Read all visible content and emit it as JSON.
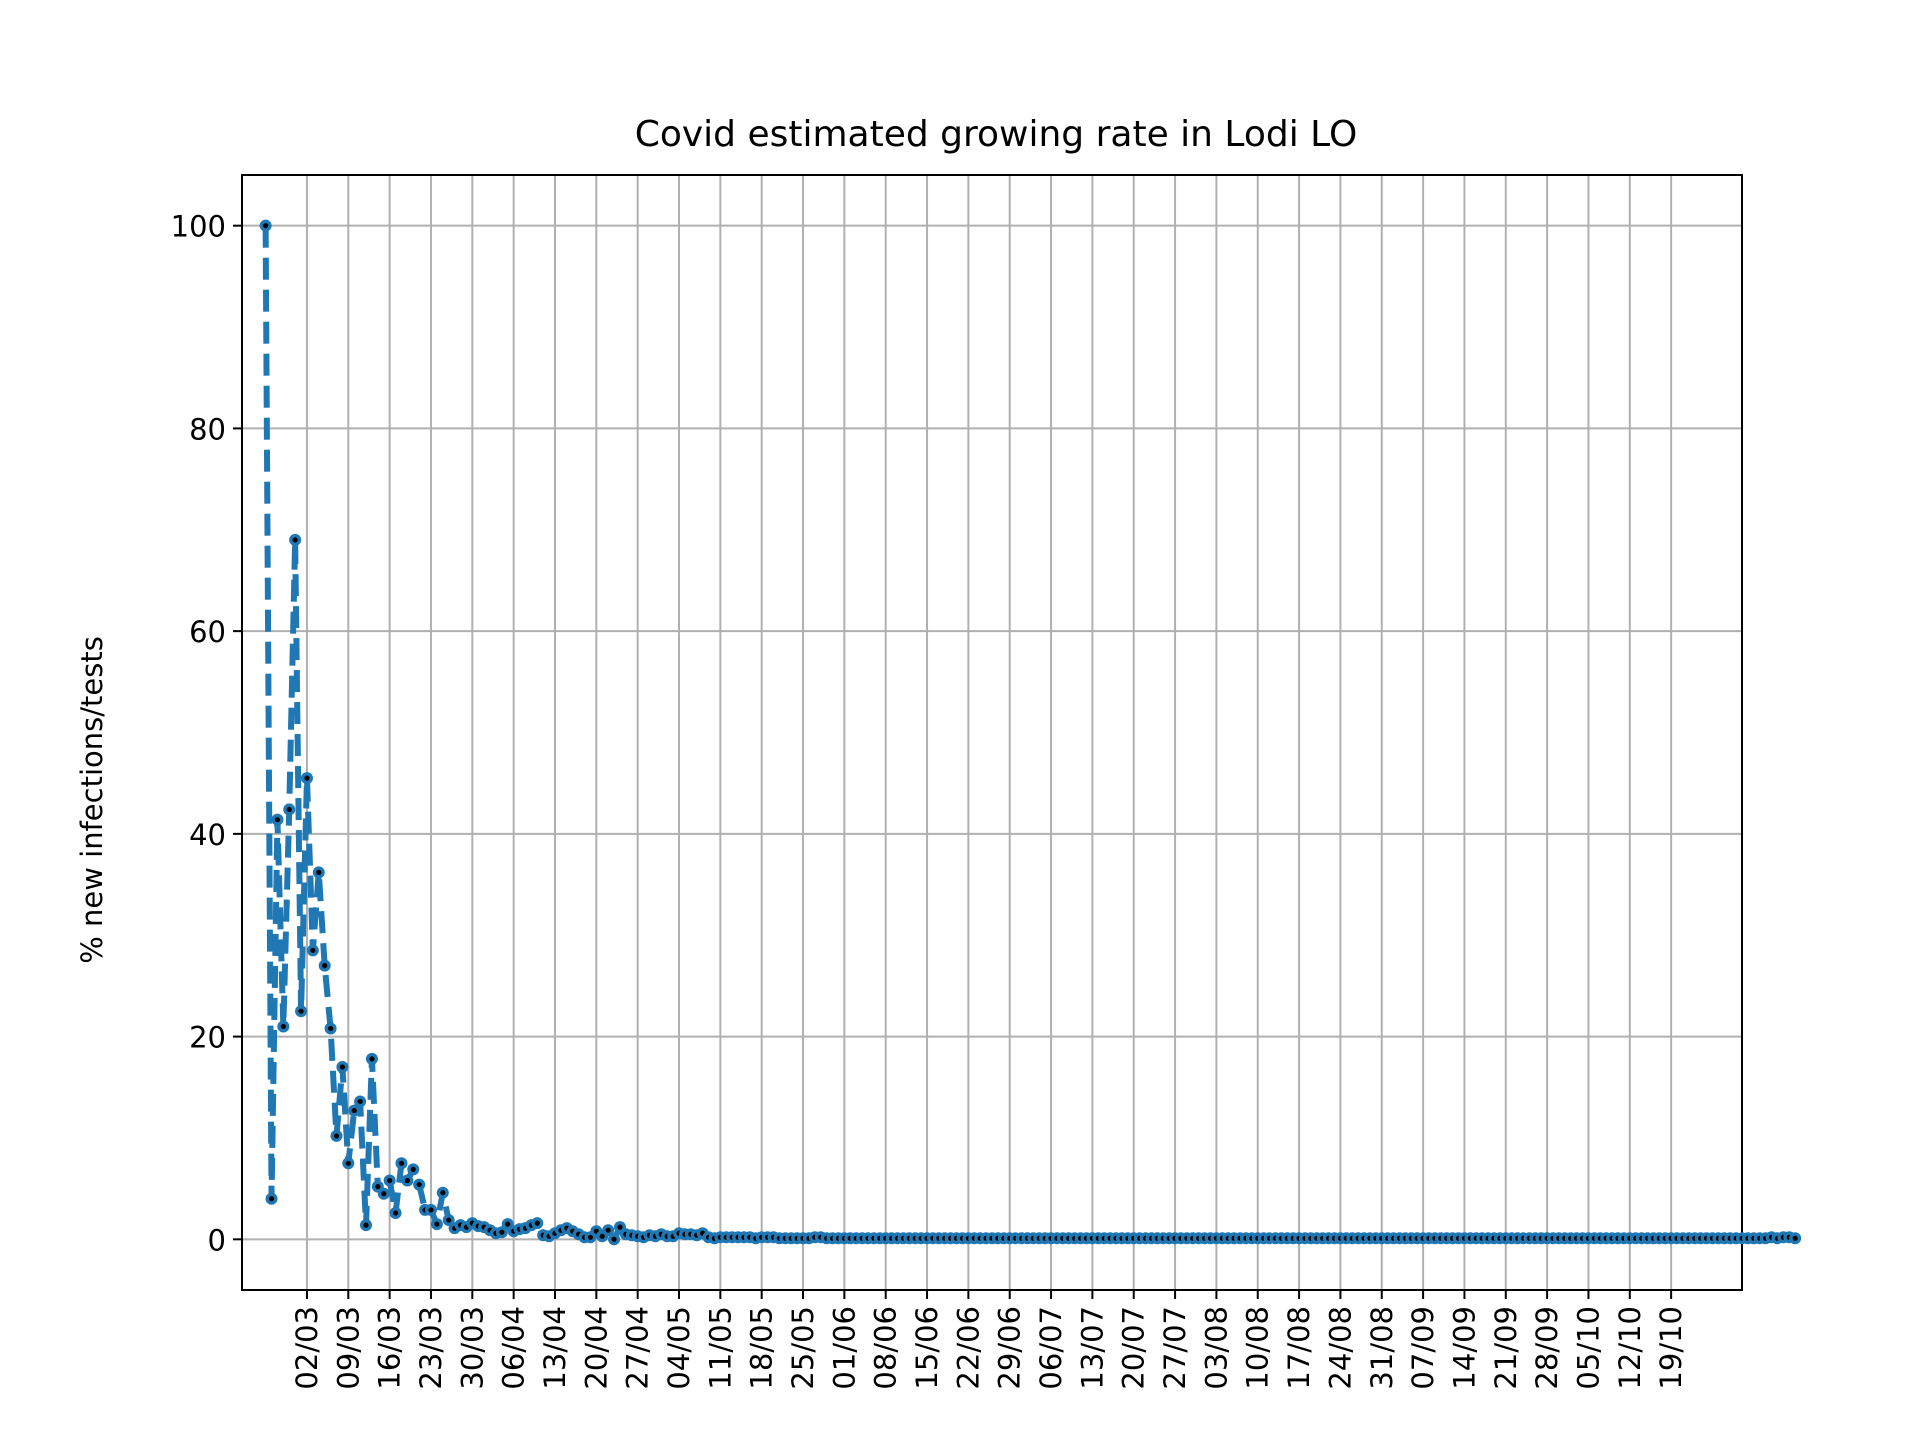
{
  "chart_data": {
    "type": "line",
    "title": "Covid estimated growing rate in Lodi LO",
    "xlabel": "",
    "ylabel": "% new infections/tests",
    "ylim": [
      -5,
      105
    ],
    "yticks": [
      0,
      20,
      40,
      60,
      80,
      100
    ],
    "ytick_labels": [
      "0",
      "20",
      "40",
      "60",
      "80",
      "100"
    ],
    "x_start_date": "2020-02-24",
    "x_end_date": "2020-10-19",
    "xtick_labels": [
      "02/03",
      "09/03",
      "16/03",
      "23/03",
      "30/03",
      "06/04",
      "13/04",
      "20/04",
      "27/04",
      "04/05",
      "11/05",
      "18/05",
      "25/05",
      "01/06",
      "08/06",
      "15/06",
      "22/06",
      "29/06",
      "06/07",
      "13/07",
      "20/07",
      "27/07",
      "03/08",
      "10/08",
      "17/08",
      "24/08",
      "31/08",
      "07/09",
      "14/09",
      "21/09",
      "28/09",
      "05/10",
      "12/10",
      "19/10"
    ],
    "grid": true,
    "line_color": "#1f77b4",
    "line_style": "dashed",
    "marker_color": "#000000",
    "series": [
      {
        "values": [
          100.0,
          4.0,
          41.4,
          21.0,
          42.4,
          69.0,
          22.5,
          45.5,
          28.5,
          36.2,
          27.0,
          20.8,
          10.2,
          17.0,
          7.5,
          12.7,
          13.6,
          1.4,
          17.8,
          5.2,
          4.5,
          5.8,
          2.6,
          7.5,
          5.8,
          6.9,
          5.4,
          2.9,
          2.9,
          1.5,
          4.6,
          1.9,
          1.1,
          1.4,
          1.2,
          1.6,
          1.3,
          1.2,
          0.9,
          0.6,
          0.7,
          1.5,
          0.8,
          1.0,
          1.1,
          1.4,
          1.6,
          0.4,
          0.3,
          0.6,
          0.9,
          1.1,
          0.8,
          0.5,
          0.2,
          0.2,
          0.8,
          0.3,
          0.9,
          0.0,
          1.2,
          0.5,
          0.4,
          0.3,
          0.2,
          0.4,
          0.3,
          0.5,
          0.3,
          0.3,
          0.6,
          0.5,
          0.5,
          0.4,
          0.6,
          0.2,
          0.1,
          0.2,
          0.2,
          0.2,
          0.2,
          0.2,
          0.2,
          0.1,
          0.2,
          0.2,
          0.2,
          0.1,
          0.1,
          0.1,
          0.1,
          0.1,
          0.1,
          0.2,
          0.2,
          0.1,
          0.1,
          0.1,
          0.1,
          0.1,
          0.1,
          0.1,
          0.1,
          0.1,
          0.1,
          0.1,
          0.1,
          0.1,
          0.1,
          0.1,
          0.1,
          0.1,
          0.1,
          0.1,
          0.1,
          0.1,
          0.1,
          0.1,
          0.1,
          0.1,
          0.1,
          0.1,
          0.1,
          0.1,
          0.1,
          0.1,
          0.1,
          0.1,
          0.1,
          0.1,
          0.1,
          0.1,
          0.1,
          0.1,
          0.1,
          0.1,
          0.1,
          0.1,
          0.1,
          0.1,
          0.1,
          0.1,
          0.1,
          0.1,
          0.1,
          0.1,
          0.1,
          0.1,
          0.1,
          0.1,
          0.1,
          0.1,
          0.1,
          0.1,
          0.1,
          0.1,
          0.1,
          0.1,
          0.1,
          0.1,
          0.1,
          0.1,
          0.1,
          0.1,
          0.1,
          0.1,
          0.1,
          0.1,
          0.1,
          0.1,
          0.1,
          0.1,
          0.1,
          0.1,
          0.1,
          0.1,
          0.1,
          0.1,
          0.1,
          0.1,
          0.1,
          0.1,
          0.1,
          0.1,
          0.1,
          0.1,
          0.1,
          0.1,
          0.1,
          0.1,
          0.1,
          0.1,
          0.1,
          0.1,
          0.1,
          0.1,
          0.1,
          0.1,
          0.1,
          0.1,
          0.1,
          0.1,
          0.1,
          0.1,
          0.1,
          0.1,
          0.1,
          0.1,
          0.1,
          0.1,
          0.1,
          0.1,
          0.1,
          0.1,
          0.1,
          0.1,
          0.1,
          0.1,
          0.1,
          0.1,
          0.1,
          0.1,
          0.1,
          0.1,
          0.1,
          0.1,
          0.1,
          0.1,
          0.1,
          0.1,
          0.1,
          0.1,
          0.1,
          0.1,
          0.1,
          0.1,
          0.1,
          0.1,
          0.1,
          0.1,
          0.1,
          0.1,
          0.1,
          0.1,
          0.1,
          0.1,
          0.1,
          0.1,
          0.1,
          0.1,
          0.1,
          0.1,
          0.1,
          0.1,
          0.1,
          0.2,
          0.1,
          0.2,
          0.2,
          0.1
        ]
      }
    ]
  }
}
